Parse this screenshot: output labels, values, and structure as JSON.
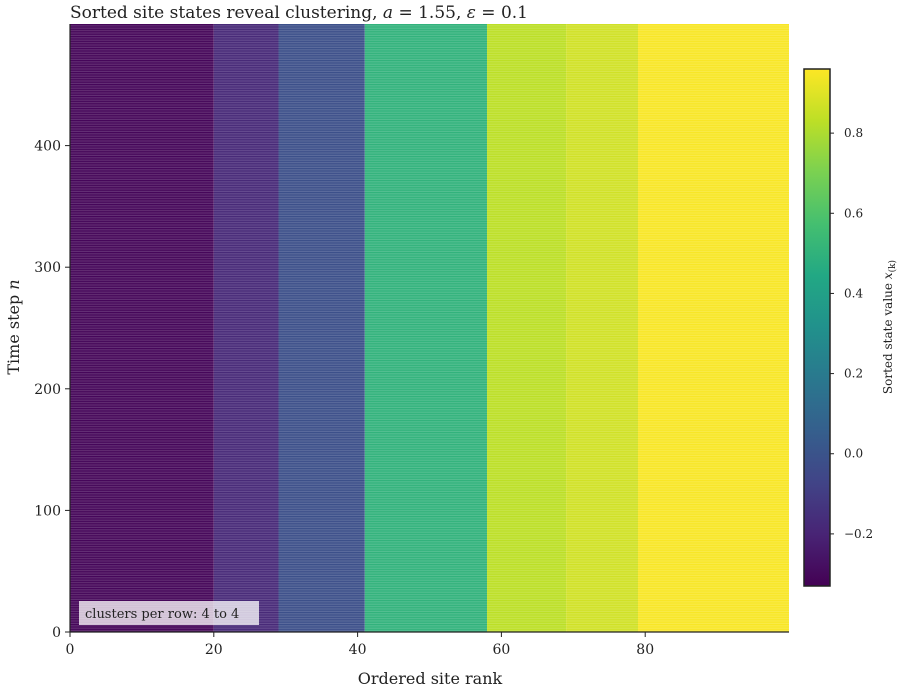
{
  "chart_data": {
    "type": "heatmap",
    "title": "Sorted site states reveal clustering, a = 1.55, ε = 0.1",
    "title_parts": {
      "text": "Sorted site states reveal clustering, ",
      "a_sym": "a",
      "a_val": " = 1.55, ",
      "eps_sym": "ε",
      "eps_val": " = 0.1"
    },
    "xlabel": "Ordered site rank",
    "ylabel": {
      "text": "Time step ",
      "sym": "n"
    },
    "xlim": [
      0,
      100
    ],
    "ylim": [
      0,
      500
    ],
    "xticks": [
      0,
      20,
      40,
      60,
      80
    ],
    "yticks": [
      0,
      100,
      200,
      300,
      400
    ],
    "bands": [
      {
        "rank_start": 0,
        "rank_end": 20,
        "value": -0.31
      },
      {
        "rank_start": 20,
        "rank_end": 29,
        "value": -0.18
      },
      {
        "rank_start": 29,
        "rank_end": 41,
        "value": -0.02
      },
      {
        "rank_start": 41,
        "rank_end": 58,
        "value": 0.5
      },
      {
        "rank_start": 58,
        "rank_end": 69,
        "value": 0.83
      },
      {
        "rank_start": 69,
        "rank_end": 79,
        "value": 0.87
      },
      {
        "rank_start": 79,
        "rank_end": 100,
        "value": 0.95
      }
    ],
    "alternating_rows": true,
    "colorbar": {
      "colormap": "viridis",
      "label": {
        "text": "Sorted state value ",
        "sym": "x",
        "sub": "(k)"
      },
      "vmin": -0.33,
      "vmax": 0.96,
      "ticks": [
        -0.2,
        0.0,
        0.2,
        0.4,
        0.6,
        0.8
      ],
      "tick_labels": [
        "−0.2",
        "0.0",
        "0.2",
        "0.4",
        "0.6",
        "0.8"
      ]
    },
    "annotation": "clusters per row: 4 to 4",
    "grid": false
  }
}
